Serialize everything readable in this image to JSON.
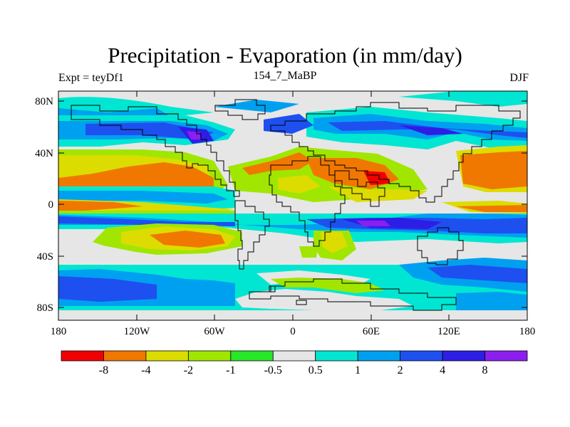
{
  "title": "Precipitation - Evaporation (in mm/day)",
  "subtitle_left": "Expt = teyDf1",
  "subtitle_center": "154_7_MaBP",
  "subtitle_right": "DJF",
  "x_ticks": [
    "180",
    "120W",
    "60W",
    "0",
    "60E",
    "120E",
    "180"
  ],
  "y_ticks": [
    "80N",
    "40N",
    "0",
    "40S",
    "80S"
  ],
  "colorbar": {
    "colors": [
      "#f00000",
      "#f07800",
      "#dcdc00",
      "#a0e600",
      "#28e628",
      "#e6e6e6",
      "#00e6d2",
      "#00a0f0",
      "#1e50f0",
      "#2d1ee6",
      "#8c1ef0"
    ],
    "labels": [
      "-8",
      "-4",
      "-2",
      "-1",
      "-0.5",
      "0.5",
      "1",
      "2",
      "4",
      "8"
    ]
  }
}
